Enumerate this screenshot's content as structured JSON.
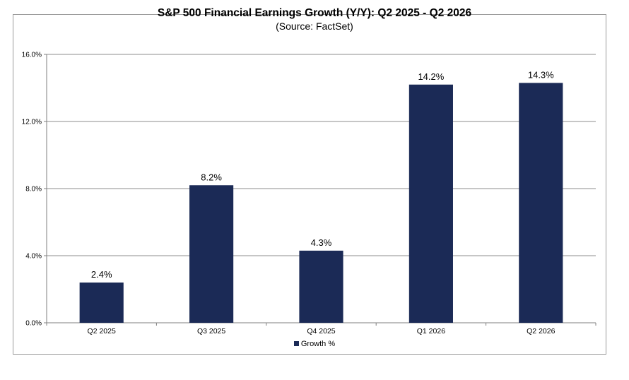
{
  "chart_data": {
    "type": "bar",
    "title": "S&P 500 Financial Earnings Growth (Y/Y):  Q2 2025 - Q2 2026",
    "subtitle": "(Source: FactSet)",
    "categories": [
      "Q2 2025",
      "Q3 2025",
      "Q4 2025",
      "Q1 2026",
      "Q2 2026"
    ],
    "series": [
      {
        "name": "Growth %",
        "values": [
          2.4,
          8.2,
          4.3,
          14.2,
          14.3
        ],
        "color": "#1b2a56"
      }
    ],
    "data_labels": [
      "2.4%",
      "8.2%",
      "4.3%",
      "14.2%",
      "14.3%"
    ],
    "y_ticks": [
      0,
      4,
      8,
      12,
      16
    ],
    "y_tick_labels": [
      "0.0%",
      "4.0%",
      "8.0%",
      "12.0%",
      "16.0%"
    ],
    "ylim": [
      0,
      16
    ],
    "xlabel": "",
    "ylabel": "",
    "grid": true,
    "legend_position": "bottom"
  }
}
